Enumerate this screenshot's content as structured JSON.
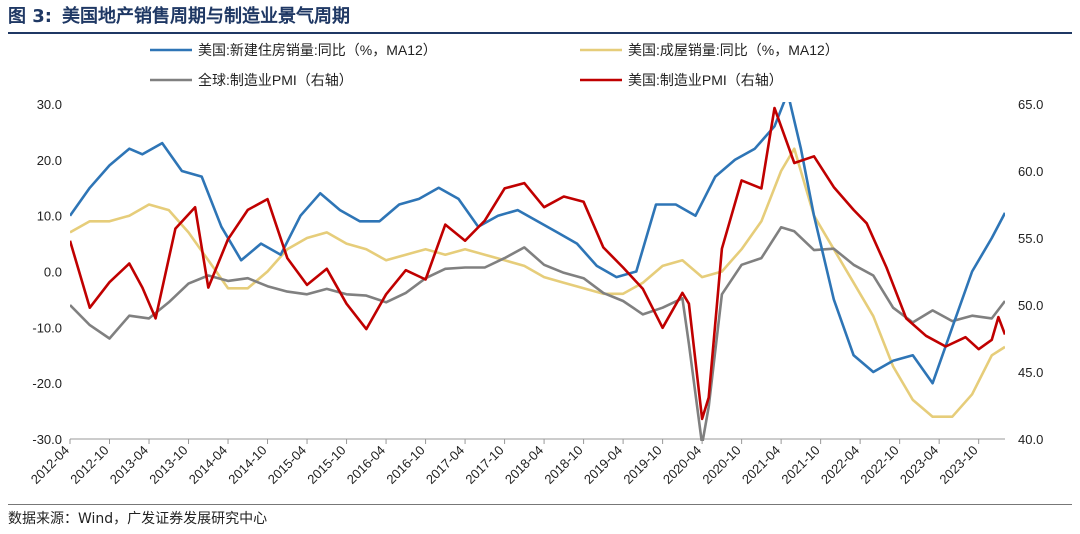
{
  "figure": {
    "label": "图 3:",
    "title": "美国地产销售周期与制造业景气周期"
  },
  "source": "数据来源：Wind，广发证券发展研究中心",
  "colors": {
    "us_new_home": "#2e75b6",
    "us_existing_home": "#e6cd7a",
    "global_pmi": "#808080",
    "us_pmi": "#c00000",
    "title_color": "#1f3864"
  },
  "chart_data": {
    "type": "line",
    "title": "美国地产销售周期与制造业景气周期",
    "xlabel": "",
    "ylabel": "",
    "left_axis": {
      "ylim": [
        -30,
        30
      ],
      "ticks": [
        "30.0",
        "20.0",
        "10.0",
        "0.0",
        "-10.0",
        "-20.0",
        "-30.0"
      ]
    },
    "right_axis": {
      "ylim": [
        40,
        65
      ],
      "ticks": [
        "65.0",
        "60.0",
        "55.0",
        "50.0",
        "45.0",
        "40.0"
      ]
    },
    "x_tick_labels": [
      "2012-04",
      "2012-10",
      "2013-04",
      "2013-10",
      "2014-04",
      "2014-10",
      "2015-04",
      "2015-10",
      "2016-04",
      "2016-10",
      "2017-04",
      "2017-10",
      "2018-04",
      "2018-10",
      "2019-04",
      "2019-10",
      "2020-04",
      "2020-10",
      "2021-04",
      "2021-10",
      "2022-04",
      "2022-10",
      "2023-04",
      "2023-10"
    ],
    "x_start": "2012-04",
    "x_end": "2024-02",
    "grid": false,
    "legend_position": "top",
    "series": [
      {
        "name": "美国:新建住房销量:同比（%，MA12）",
        "axis": "left",
        "color": "#2e75b6",
        "points": [
          [
            "2012-04",
            10
          ],
          [
            "2012-07",
            15
          ],
          [
            "2012-10",
            19
          ],
          [
            "2013-01",
            22
          ],
          [
            "2013-03",
            21
          ],
          [
            "2013-06",
            23
          ],
          [
            "2013-09",
            18
          ],
          [
            "2013-12",
            17
          ],
          [
            "2014-03",
            8
          ],
          [
            "2014-06",
            2
          ],
          [
            "2014-09",
            5
          ],
          [
            "2014-12",
            3
          ],
          [
            "2015-03",
            10
          ],
          [
            "2015-06",
            14
          ],
          [
            "2015-09",
            11
          ],
          [
            "2015-12",
            9
          ],
          [
            "2016-03",
            9
          ],
          [
            "2016-06",
            12
          ],
          [
            "2016-09",
            13
          ],
          [
            "2016-12",
            15
          ],
          [
            "2017-03",
            13
          ],
          [
            "2017-06",
            8
          ],
          [
            "2017-09",
            10
          ],
          [
            "2017-12",
            11
          ],
          [
            "2018-03",
            9
          ],
          [
            "2018-06",
            7
          ],
          [
            "2018-09",
            5
          ],
          [
            "2018-12",
            1
          ],
          [
            "2019-03",
            -1
          ],
          [
            "2019-06",
            0
          ],
          [
            "2019-09",
            12
          ],
          [
            "2019-12",
            12
          ],
          [
            "2020-03",
            10
          ],
          [
            "2020-06",
            17
          ],
          [
            "2020-09",
            20
          ],
          [
            "2020-12",
            22
          ],
          [
            "2021-03",
            26
          ],
          [
            "2021-05",
            32
          ],
          [
            "2021-07",
            22
          ],
          [
            "2021-09",
            10
          ],
          [
            "2021-12",
            -5
          ],
          [
            "2022-03",
            -15
          ],
          [
            "2022-06",
            -18
          ],
          [
            "2022-09",
            -16
          ],
          [
            "2022-12",
            -15
          ],
          [
            "2023-03",
            -20
          ],
          [
            "2023-06",
            -10
          ],
          [
            "2023-09",
            0
          ],
          [
            "2023-12",
            6
          ],
          [
            "2024-02",
            10.5
          ]
        ]
      },
      {
        "name": "美国:成屋销量:同比（%，MA12）",
        "axis": "left",
        "color": "#e6cd7a",
        "points": [
          [
            "2012-04",
            7
          ],
          [
            "2012-07",
            9
          ],
          [
            "2012-10",
            9
          ],
          [
            "2013-01",
            10
          ],
          [
            "2013-04",
            12
          ],
          [
            "2013-07",
            11
          ],
          [
            "2013-10",
            7
          ],
          [
            "2014-01",
            2
          ],
          [
            "2014-04",
            -3
          ],
          [
            "2014-07",
            -3
          ],
          [
            "2014-10",
            0
          ],
          [
            "2015-01",
            4
          ],
          [
            "2015-04",
            6
          ],
          [
            "2015-07",
            7
          ],
          [
            "2015-10",
            5
          ],
          [
            "2016-01",
            4
          ],
          [
            "2016-04",
            2
          ],
          [
            "2016-07",
            3
          ],
          [
            "2016-10",
            4
          ],
          [
            "2017-01",
            3
          ],
          [
            "2017-04",
            4
          ],
          [
            "2017-07",
            3
          ],
          [
            "2017-10",
            2
          ],
          [
            "2018-01",
            1
          ],
          [
            "2018-04",
            -1
          ],
          [
            "2018-07",
            -2
          ],
          [
            "2018-10",
            -3
          ],
          [
            "2019-01",
            -4
          ],
          [
            "2019-04",
            -4
          ],
          [
            "2019-07",
            -2
          ],
          [
            "2019-10",
            1
          ],
          [
            "2020-01",
            2
          ],
          [
            "2020-04",
            -1
          ],
          [
            "2020-07",
            0
          ],
          [
            "2020-10",
            4
          ],
          [
            "2021-01",
            9
          ],
          [
            "2021-04",
            18
          ],
          [
            "2021-06",
            22
          ],
          [
            "2021-09",
            10
          ],
          [
            "2021-12",
            4
          ],
          [
            "2022-03",
            -2
          ],
          [
            "2022-06",
            -8
          ],
          [
            "2022-09",
            -17
          ],
          [
            "2022-12",
            -23
          ],
          [
            "2023-03",
            -26
          ],
          [
            "2023-06",
            -26
          ],
          [
            "2023-09",
            -22
          ],
          [
            "2023-12",
            -15
          ],
          [
            "2024-02",
            -13.5
          ]
        ]
      },
      {
        "name": "全球:制造业PMI（右轴）",
        "axis": "right",
        "color": "#808080",
        "points": [
          [
            "2012-04",
            50.0
          ],
          [
            "2012-07",
            48.5
          ],
          [
            "2012-10",
            47.5
          ],
          [
            "2013-01",
            49.2
          ],
          [
            "2013-04",
            49.0
          ],
          [
            "2013-07",
            50.2
          ],
          [
            "2013-10",
            51.6
          ],
          [
            "2014-01",
            52.2
          ],
          [
            "2014-04",
            51.8
          ],
          [
            "2014-07",
            52.0
          ],
          [
            "2014-10",
            51.4
          ],
          [
            "2015-01",
            51.0
          ],
          [
            "2015-04",
            50.8
          ],
          [
            "2015-07",
            51.2
          ],
          [
            "2015-10",
            50.8
          ],
          [
            "2016-01",
            50.7
          ],
          [
            "2016-04",
            50.2
          ],
          [
            "2016-07",
            50.9
          ],
          [
            "2016-10",
            52.0
          ],
          [
            "2017-01",
            52.7
          ],
          [
            "2017-04",
            52.8
          ],
          [
            "2017-07",
            52.8
          ],
          [
            "2017-10",
            53.5
          ],
          [
            "2018-01",
            54.3
          ],
          [
            "2018-04",
            53.0
          ],
          [
            "2018-07",
            52.4
          ],
          [
            "2018-10",
            52.0
          ],
          [
            "2019-01",
            50.9
          ],
          [
            "2019-04",
            50.3
          ],
          [
            "2019-07",
            49.3
          ],
          [
            "2019-10",
            49.8
          ],
          [
            "2020-01",
            50.5
          ],
          [
            "2020-02",
            47.1
          ],
          [
            "2020-04",
            39.6
          ],
          [
            "2020-05",
            42.4
          ],
          [
            "2020-07",
            50.8
          ],
          [
            "2020-10",
            53.0
          ],
          [
            "2021-01",
            53.5
          ],
          [
            "2021-04",
            55.8
          ],
          [
            "2021-06",
            55.5
          ],
          [
            "2021-09",
            54.1
          ],
          [
            "2021-12",
            54.2
          ],
          [
            "2022-03",
            53.0
          ],
          [
            "2022-06",
            52.2
          ],
          [
            "2022-09",
            49.8
          ],
          [
            "2022-12",
            48.7
          ],
          [
            "2023-03",
            49.6
          ],
          [
            "2023-06",
            48.8
          ],
          [
            "2023-09",
            49.2
          ],
          [
            "2023-12",
            49.0
          ],
          [
            "2024-02",
            50.3
          ]
        ]
      },
      {
        "name": "美国:制造业PMI（右轴）",
        "axis": "right",
        "color": "#c00000",
        "points": [
          [
            "2012-04",
            54.8
          ],
          [
            "2012-07",
            49.8
          ],
          [
            "2012-10",
            51.7
          ],
          [
            "2013-01",
            53.1
          ],
          [
            "2013-03",
            51.3
          ],
          [
            "2013-05",
            49.0
          ],
          [
            "2013-08",
            55.7
          ],
          [
            "2013-11",
            57.3
          ],
          [
            "2014-01",
            51.3
          ],
          [
            "2014-04",
            54.9
          ],
          [
            "2014-07",
            57.1
          ],
          [
            "2014-10",
            57.9
          ],
          [
            "2015-01",
            53.5
          ],
          [
            "2015-04",
            51.5
          ],
          [
            "2015-07",
            52.7
          ],
          [
            "2015-10",
            50.1
          ],
          [
            "2016-01",
            48.2
          ],
          [
            "2016-04",
            50.8
          ],
          [
            "2016-07",
            52.6
          ],
          [
            "2016-10",
            51.9
          ],
          [
            "2017-01",
            56.0
          ],
          [
            "2017-04",
            54.8
          ],
          [
            "2017-07",
            56.3
          ],
          [
            "2017-10",
            58.7
          ],
          [
            "2018-01",
            59.1
          ],
          [
            "2018-04",
            57.3
          ],
          [
            "2018-07",
            58.1
          ],
          [
            "2018-10",
            57.7
          ],
          [
            "2019-01",
            54.3
          ],
          [
            "2019-04",
            52.8
          ],
          [
            "2019-07",
            51.2
          ],
          [
            "2019-10",
            48.3
          ],
          [
            "2020-01",
            50.9
          ],
          [
            "2020-02",
            50.1
          ],
          [
            "2020-04",
            41.5
          ],
          [
            "2020-05",
            43.1
          ],
          [
            "2020-07",
            54.2
          ],
          [
            "2020-10",
            59.3
          ],
          [
            "2021-01",
            58.7
          ],
          [
            "2021-03",
            64.7
          ],
          [
            "2021-06",
            60.6
          ],
          [
            "2021-09",
            61.1
          ],
          [
            "2021-12",
            58.8
          ],
          [
            "2022-03",
            57.1
          ],
          [
            "2022-05",
            56.1
          ],
          [
            "2022-08",
            52.8
          ],
          [
            "2022-11",
            49.0
          ],
          [
            "2023-02",
            47.7
          ],
          [
            "2023-05",
            46.9
          ],
          [
            "2023-08",
            47.6
          ],
          [
            "2023-10",
            46.7
          ],
          [
            "2023-12",
            47.4
          ],
          [
            "2024-01",
            49.1
          ],
          [
            "2024-02",
            47.8
          ]
        ]
      }
    ]
  }
}
